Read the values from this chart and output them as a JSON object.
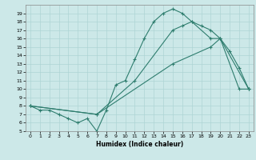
{
  "xlabel": "Humidex (Indice chaleur)",
  "bg_color": "#cce8e8",
  "line_color": "#2e7d6e",
  "grid_color": "#aed4d4",
  "xmin": -0.5,
  "xmax": 23.5,
  "ymin": 5,
  "ymax": 20,
  "line1": {
    "x": [
      0,
      1,
      2,
      3,
      4,
      5,
      6,
      7,
      8,
      9,
      10,
      11,
      12,
      13,
      14,
      15,
      16,
      17,
      18,
      19,
      20,
      21,
      22,
      23
    ],
    "y": [
      8,
      7.5,
      7.5,
      7,
      6.5,
      6,
      6.5,
      5,
      7.5,
      10.5,
      11,
      13.5,
      16,
      18,
      19,
      19.5,
      19,
      18,
      17.5,
      17,
      16,
      14.5,
      12.5,
      10
    ]
  },
  "line2": {
    "x": [
      0,
      7,
      11,
      15,
      16,
      17,
      19,
      20,
      22,
      23
    ],
    "y": [
      8,
      7,
      11,
      17,
      17.5,
      18,
      16,
      16,
      10,
      10
    ]
  },
  "line3": {
    "x": [
      0,
      7,
      15,
      19,
      20,
      23
    ],
    "y": [
      8,
      7,
      13,
      15,
      16,
      10
    ]
  }
}
